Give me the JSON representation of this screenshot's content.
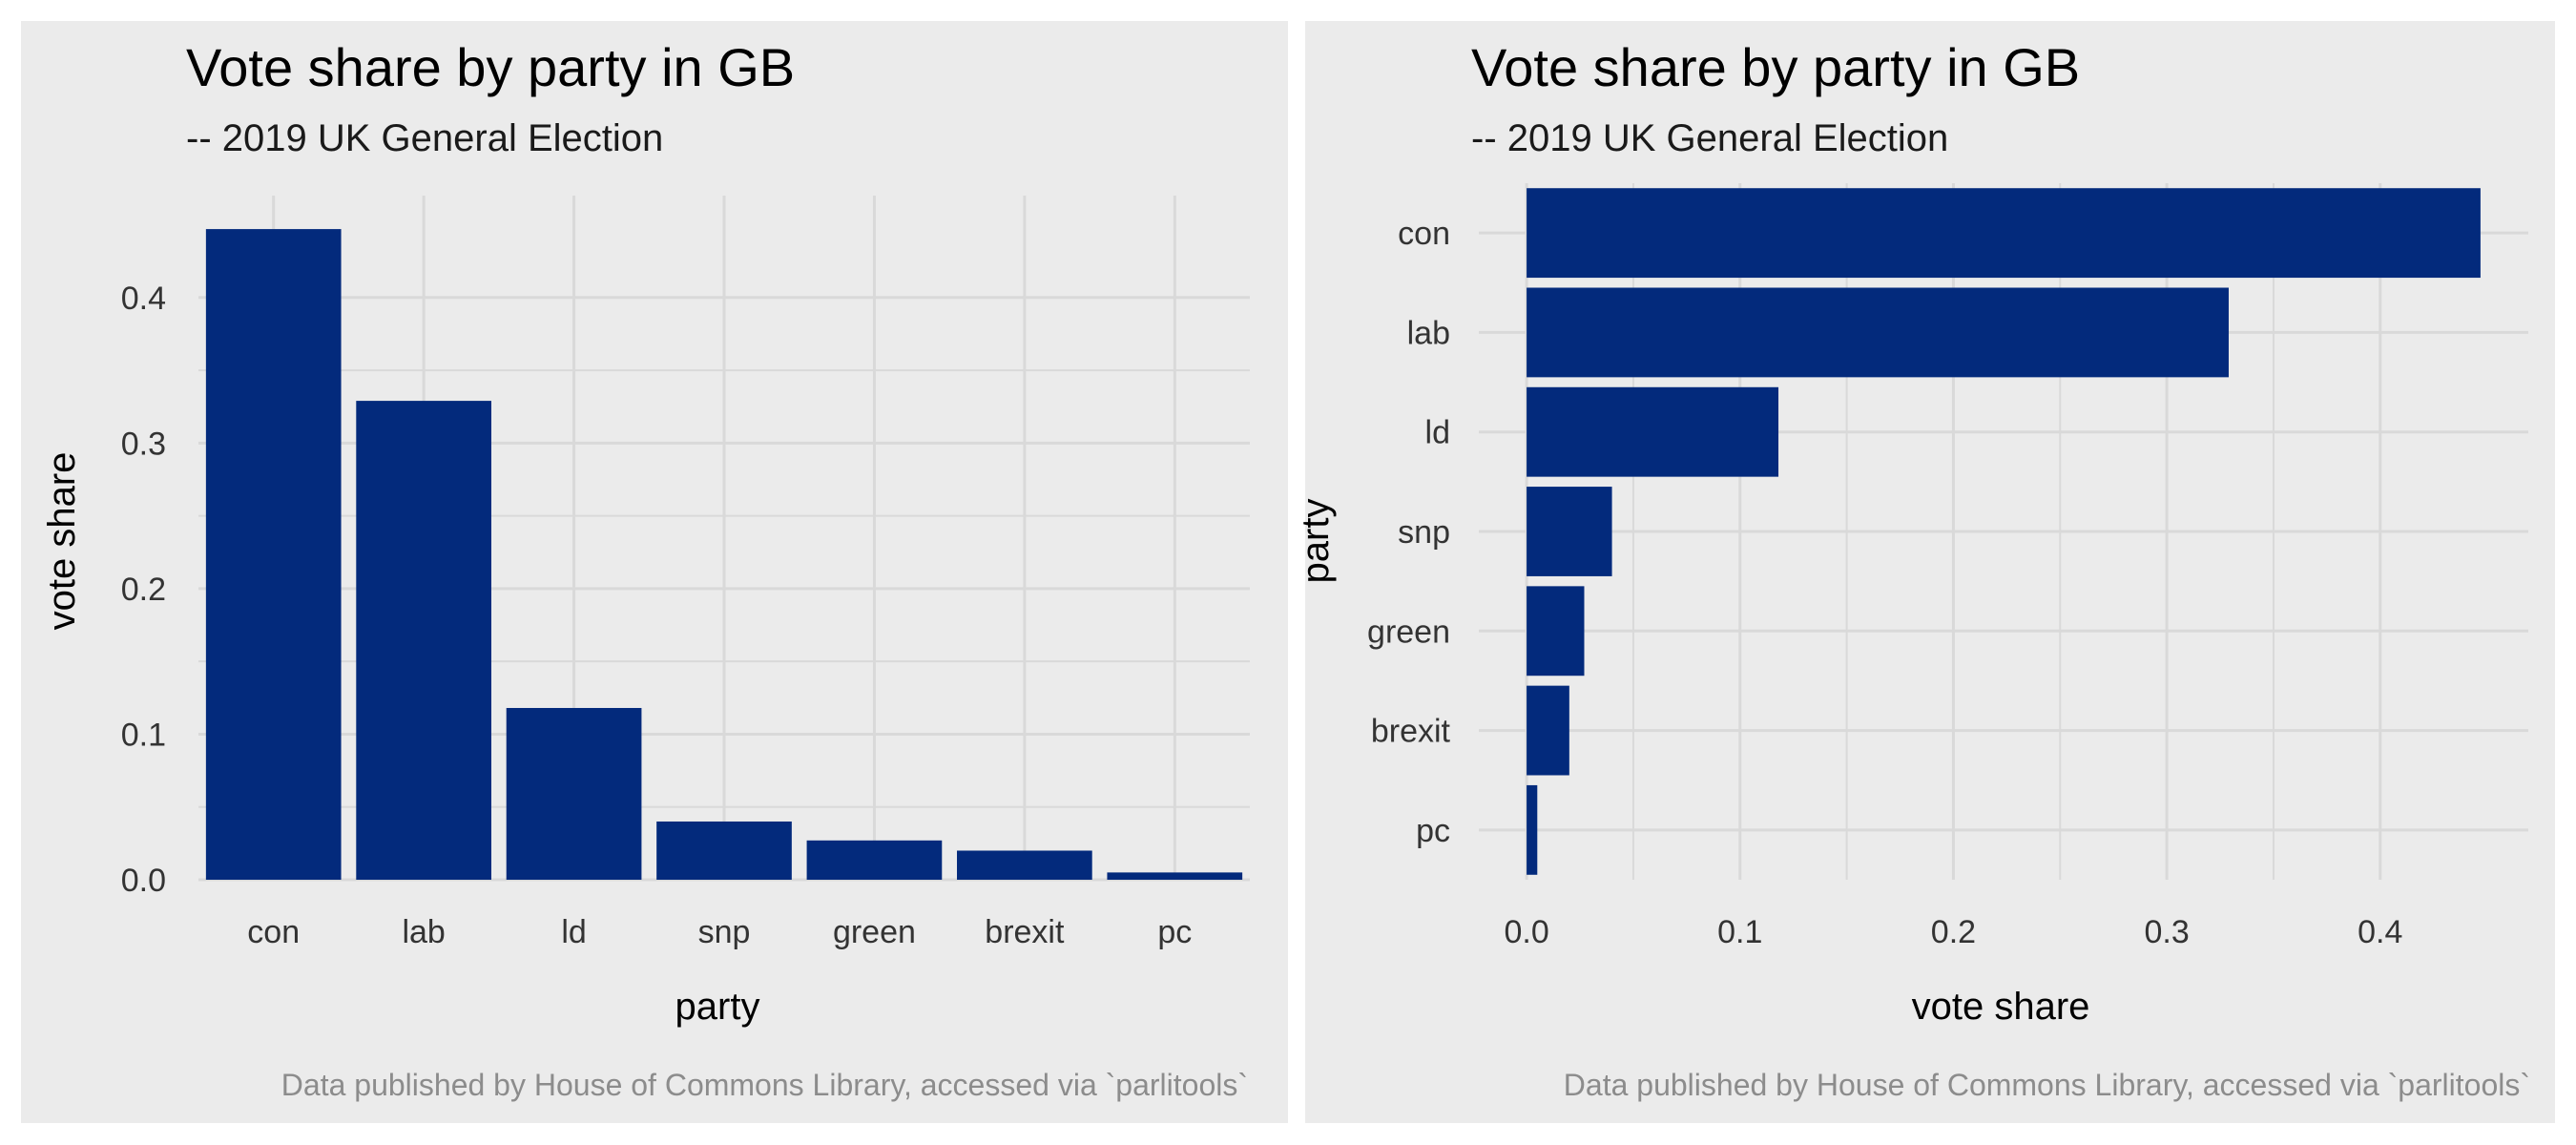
{
  "chart_data": [
    {
      "type": "bar",
      "orientation": "vertical",
      "title": "Vote share by party in GB",
      "subtitle": "-- 2019 UK General Election",
      "xlabel": "party",
      "ylabel": "vote share",
      "categories": [
        "con",
        "lab",
        "ld",
        "snp",
        "green",
        "brexit",
        "pc"
      ],
      "values": [
        0.447,
        0.329,
        0.118,
        0.04,
        0.027,
        0.02,
        0.005
      ],
      "ylim": [
        0,
        0.47
      ],
      "y_ticks": [
        "0.0",
        "0.1",
        "0.2",
        "0.3",
        "0.4"
      ],
      "caption": "Data published by House of Commons Library, accessed via `parlitools`",
      "grid": true
    },
    {
      "type": "bar",
      "orientation": "horizontal",
      "title": "Vote share by party in GB",
      "subtitle": "-- 2019 UK General Election",
      "xlabel": "vote share",
      "ylabel": "party",
      "categories": [
        "con",
        "lab",
        "ld",
        "snp",
        "green",
        "brexit",
        "pc"
      ],
      "values": [
        0.447,
        0.329,
        0.118,
        0.04,
        0.027,
        0.02,
        0.005
      ],
      "xlim": [
        -0.0224,
        0.4694
      ],
      "x_ticks": [
        "0.0",
        "0.1",
        "0.2",
        "0.3",
        "0.4"
      ],
      "caption": "Data published by House of Commons Library, accessed via `parlitools`",
      "grid": true
    }
  ],
  "colors": {
    "bar": "#032a7c",
    "panel_background": "#ebebeb",
    "grid": "#d9d9d9",
    "page_background": "#ffffff"
  }
}
